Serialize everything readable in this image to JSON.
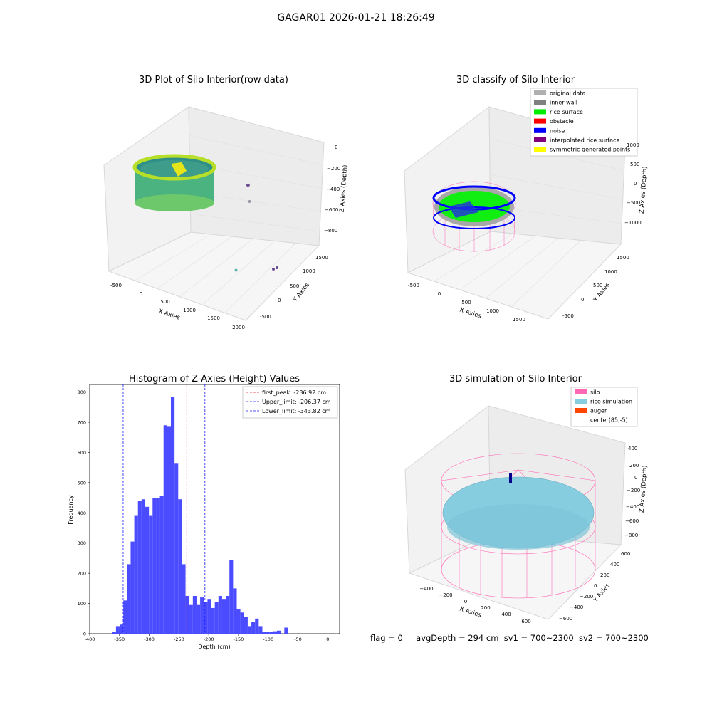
{
  "figure": {
    "title": "GAGAR01 2026-01-21 18:26:49",
    "footer": {
      "flag": "flag = 0",
      "avg_depth": "avgDepth = 294 cm",
      "sv1": "sv1 = 700~2300",
      "sv2": "sv2 = 700~2300"
    }
  },
  "colors": {
    "hist_bar": "#4b4bff",
    "peak_line": "#e02020",
    "limit_line": "#1a1aff",
    "silo_wire": "#ff69b4",
    "rice": "#87cde0",
    "auger": "#ff4500",
    "inner_wall": "#808080",
    "rice_surface": "#00ee00",
    "obstacle": "#ff0000",
    "noise": "#0000ff",
    "interpolated": "#800080",
    "symmetric": "#ffff00",
    "original": "#b0b0b0"
  },
  "chart_data": [
    {
      "type": "scatter",
      "title": "3D Plot of Silo Interior(row data)",
      "xlabel": "X Axies",
      "ylabel": "Y Axies",
      "zlabel": "Z Axies (Depth)",
      "x_ticks": [
        "-500",
        "0",
        "500",
        "1000",
        "1500",
        "2000"
      ],
      "y_ticks": [
        "-500",
        "0",
        "500",
        "1000",
        "1500"
      ],
      "z_ticks": [
        "0",
        "−200",
        "−400",
        "−600",
        "−800"
      ],
      "outliers": [
        {
          "x": 1250,
          "y": 300,
          "z": -350
        },
        {
          "x": 1500,
          "y": 250,
          "z": -650
        },
        {
          "x": 1600,
          "y": 100,
          "z": -800
        },
        {
          "x": 1900,
          "y": -300,
          "z": -900
        }
      ]
    },
    {
      "type": "scatter",
      "title": "3D classify of Silo Interior",
      "xlabel": "X Axies",
      "ylabel": "Y Axies",
      "zlabel": "Z Axies (Depth)",
      "x_ticks": [
        "-500",
        "0",
        "500",
        "1000",
        "1500"
      ],
      "y_ticks": [
        "-500",
        "0",
        "500",
        "1000",
        "1500"
      ],
      "z_ticks": [
        "1000",
        "500",
        "0",
        "−500",
        "−1000"
      ],
      "legend": [
        "original data",
        "inner wall",
        "rice surface",
        "obstacle",
        "noise",
        "interpolated rice surface",
        "symmetric generated points"
      ],
      "legend_placement": "top-right"
    },
    {
      "type": "bar",
      "title": "Histogram of Z-Axies (Height) Values",
      "xlabel": "Depth (cm)",
      "ylabel": "Frequency",
      "xlim": [
        -400,
        20
      ],
      "ylim": [
        0,
        825
      ],
      "x_ticks": [
        -400,
        -350,
        -300,
        -250,
        -200,
        -150,
        -100,
        -50,
        0
      ],
      "y_ticks": [
        0,
        100,
        200,
        300,
        400,
        500,
        600,
        700,
        800
      ],
      "bin_start": -362,
      "bin_width": 6.15,
      "values": [
        5,
        25,
        30,
        110,
        230,
        305,
        390,
        440,
        445,
        420,
        390,
        450,
        450,
        455,
        690,
        685,
        785,
        565,
        445,
        230,
        125,
        95,
        125,
        95,
        120,
        105,
        115,
        85,
        105,
        125,
        115,
        125,
        245,
        150,
        80,
        70,
        55,
        25,
        40,
        50,
        25,
        5,
        5,
        5,
        8,
        10,
        0,
        20
      ],
      "vlines": [
        {
          "label": "first_peak: -236.92 cm",
          "x": -236.92,
          "kind": "peak"
        },
        {
          "label": "Upper_limit: -206.37 cm",
          "x": -206.37,
          "kind": "limit"
        },
        {
          "label": "Lower_limit: -343.82 cm",
          "x": -343.82,
          "kind": "limit"
        }
      ],
      "legend_placement": "top-right"
    },
    {
      "type": "surface",
      "title": "3D simulation of Silo Interior",
      "xlabel": "X Axies",
      "ylabel": "Y Axies",
      "zlabel": "Z Axies (Depth)",
      "x_ticks": [
        "−400",
        "−200",
        "0",
        "200",
        "400",
        "600"
      ],
      "y_ticks": [
        "−600",
        "−400",
        "−200",
        "0",
        "200",
        "400",
        "600"
      ],
      "z_ticks": [
        "400",
        "200",
        "0",
        "−200",
        "−400",
        "−600",
        "−800"
      ],
      "legend": [
        "silo",
        "rice simulation",
        "auger",
        "center(85,-5)"
      ],
      "legend_placement": "top-right"
    }
  ]
}
